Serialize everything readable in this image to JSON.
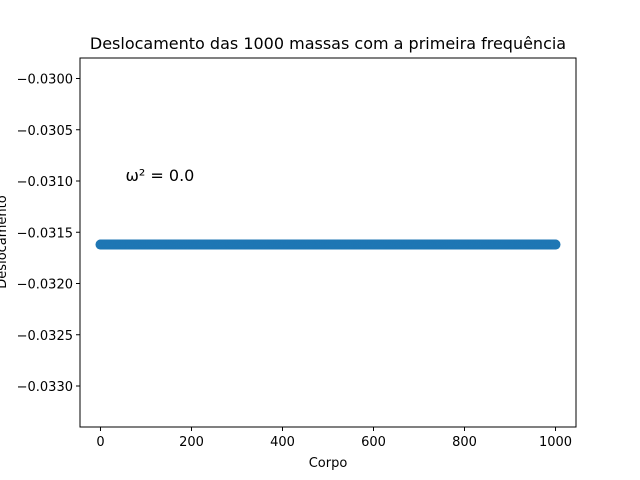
{
  "chart_data": {
    "type": "scatter",
    "title": "Deslocamento das 1000 massas com a primeira frequência",
    "xlabel": "Corpo",
    "ylabel": "Deslocamento",
    "xlim": [
      -45,
      1045
    ],
    "ylim": [
      -0.0334,
      -0.0298
    ],
    "xticks": [
      0,
      200,
      400,
      600,
      800,
      1000
    ],
    "xtick_labels": [
      "0",
      "200",
      "400",
      "600",
      "800",
      "1000"
    ],
    "yticks": [
      -0.03,
      -0.0305,
      -0.031,
      -0.0315,
      -0.032,
      -0.0325,
      -0.033
    ],
    "ytick_labels": [
      "−0.0300",
      "−0.0305",
      "−0.0310",
      "−0.0315",
      "−0.0320",
      "−0.0325",
      "−0.0330"
    ],
    "series": [
      {
        "x_start": 0,
        "x_end": 1000,
        "n_points": 1000,
        "y_constant": -0.03162,
        "color": "#1f77b4"
      }
    ],
    "annotations": [
      {
        "text": "ω² = 0.0",
        "x": 55,
        "y": -0.031
      }
    ],
    "grid": false,
    "legend": "none"
  }
}
